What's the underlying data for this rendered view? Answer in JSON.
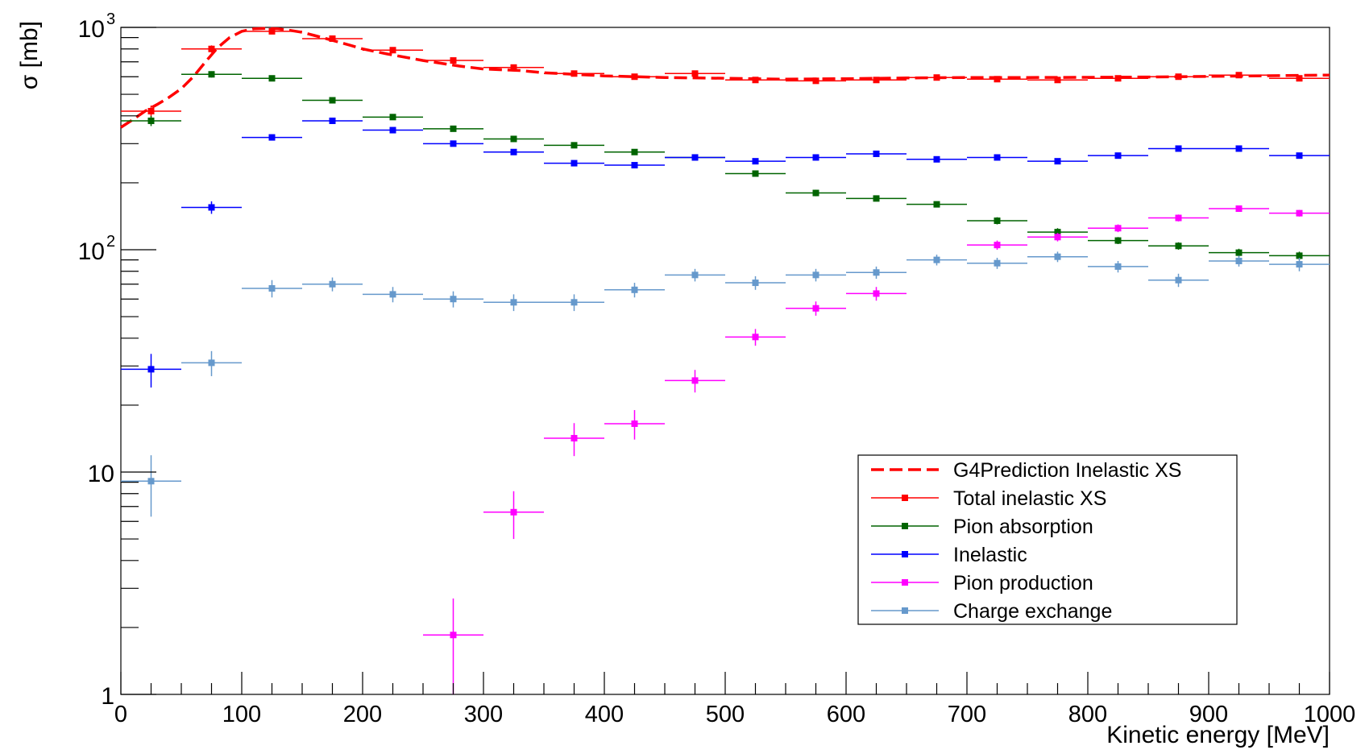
{
  "chart_data": {
    "type": "scatter",
    "xlabel": "Kinetic energy [MeV]",
    "ylabel": "σ [mb]",
    "xlim": [
      0,
      1000
    ],
    "ylim": [
      1,
      1000
    ],
    "y_scale": "log",
    "x_ticks": [
      0,
      100,
      200,
      300,
      400,
      500,
      600,
      700,
      800,
      900,
      1000
    ],
    "y_tick_labels": [
      {
        "value": 1,
        "label": "1"
      },
      {
        "value": 10,
        "label": "10"
      },
      {
        "value": 100,
        "label": "10",
        "exponent": "2"
      },
      {
        "value": 1000,
        "label": "10",
        "exponent": "3"
      }
    ],
    "legend_position": "bottom-right",
    "bin_width": 50,
    "x": [
      25,
      75,
      125,
      175,
      225,
      275,
      325,
      375,
      425,
      475,
      525,
      575,
      625,
      675,
      725,
      775,
      825,
      875,
      925,
      975
    ],
    "prediction": {
      "name": "G4Prediction Inelastic XS",
      "color": "#ff0000",
      "x": [
        0,
        10,
        20,
        30,
        40,
        50,
        60,
        70,
        80,
        90,
        100,
        110,
        120,
        130,
        140,
        150,
        160,
        170,
        180,
        190,
        200,
        220,
        250,
        280,
        300,
        330,
        350,
        400,
        450,
        500,
        550,
        600,
        650,
        700,
        750,
        800,
        850,
        900,
        950,
        1000
      ],
      "y": [
        355,
        385,
        420,
        450,
        485,
        530,
        600,
        700,
        810,
        900,
        960,
        985,
        990,
        985,
        970,
        950,
        920,
        890,
        860,
        830,
        800,
        760,
        710,
        670,
        650,
        640,
        625,
        605,
        595,
        590,
        585,
        588,
        592,
        595,
        595,
        596,
        598,
        602,
        606,
        610
      ]
    },
    "series": [
      {
        "name": "Total inelastic XS",
        "color": "#ff0000",
        "values": [
          420,
          800,
          960,
          890,
          790,
          710,
          660,
          620,
          600,
          620,
          580,
          575,
          580,
          595,
          585,
          580,
          590,
          600,
          610,
          590
        ],
        "errors": [
          25,
          30,
          20,
          18,
          15,
          15,
          14,
          13,
          12,
          14,
          12,
          12,
          12,
          12,
          12,
          12,
          12,
          12,
          12,
          12
        ]
      },
      {
        "name": "Pion absorption",
        "color": "#006400",
        "values": [
          380,
          615,
          590,
          470,
          395,
          350,
          315,
          295,
          275,
          260,
          220,
          180,
          170,
          160,
          135,
          120,
          110,
          104,
          97,
          94
        ],
        "errors": [
          20,
          20,
          15,
          12,
          10,
          9,
          8,
          8,
          7,
          7,
          6,
          6,
          5,
          5,
          5,
          5,
          4,
          4,
          4,
          4
        ]
      },
      {
        "name": "Inelastic",
        "color": "#0000ff",
        "values": [
          29,
          155,
          320,
          380,
          345,
          300,
          275,
          245,
          240,
          260,
          250,
          260,
          270,
          255,
          260,
          250,
          265,
          285,
          285,
          265
        ],
        "errors": [
          5,
          10,
          10,
          9,
          8,
          8,
          7,
          7,
          7,
          7,
          7,
          7,
          7,
          7,
          7,
          7,
          7,
          7,
          7,
          7
        ]
      },
      {
        "name": "Pion production",
        "color": "#ff00ff",
        "values": [
          null,
          null,
          null,
          null,
          null,
          1.85,
          6.6,
          14.2,
          16.5,
          25.8,
          40.5,
          54.5,
          63.5,
          null,
          105,
          114,
          125,
          139,
          153,
          146
        ],
        "errors": [
          null,
          null,
          null,
          null,
          null,
          0.85,
          1.6,
          2.4,
          2.5,
          3.0,
          3.5,
          4.0,
          4.5,
          null,
          5,
          5,
          5,
          5,
          5,
          5
        ]
      },
      {
        "name": "Charge exchange",
        "color": "#6699cc",
        "values": [
          9.1,
          31,
          67,
          70,
          63,
          60,
          58,
          58,
          66,
          77,
          71,
          77,
          79,
          90,
          87,
          93,
          84,
          73,
          89,
          86
        ],
        "errors": [
          2.8,
          4,
          6,
          5,
          5,
          5,
          5,
          5,
          5,
          5,
          5,
          5,
          5,
          5,
          5,
          5,
          5,
          5,
          5,
          6
        ]
      }
    ]
  }
}
